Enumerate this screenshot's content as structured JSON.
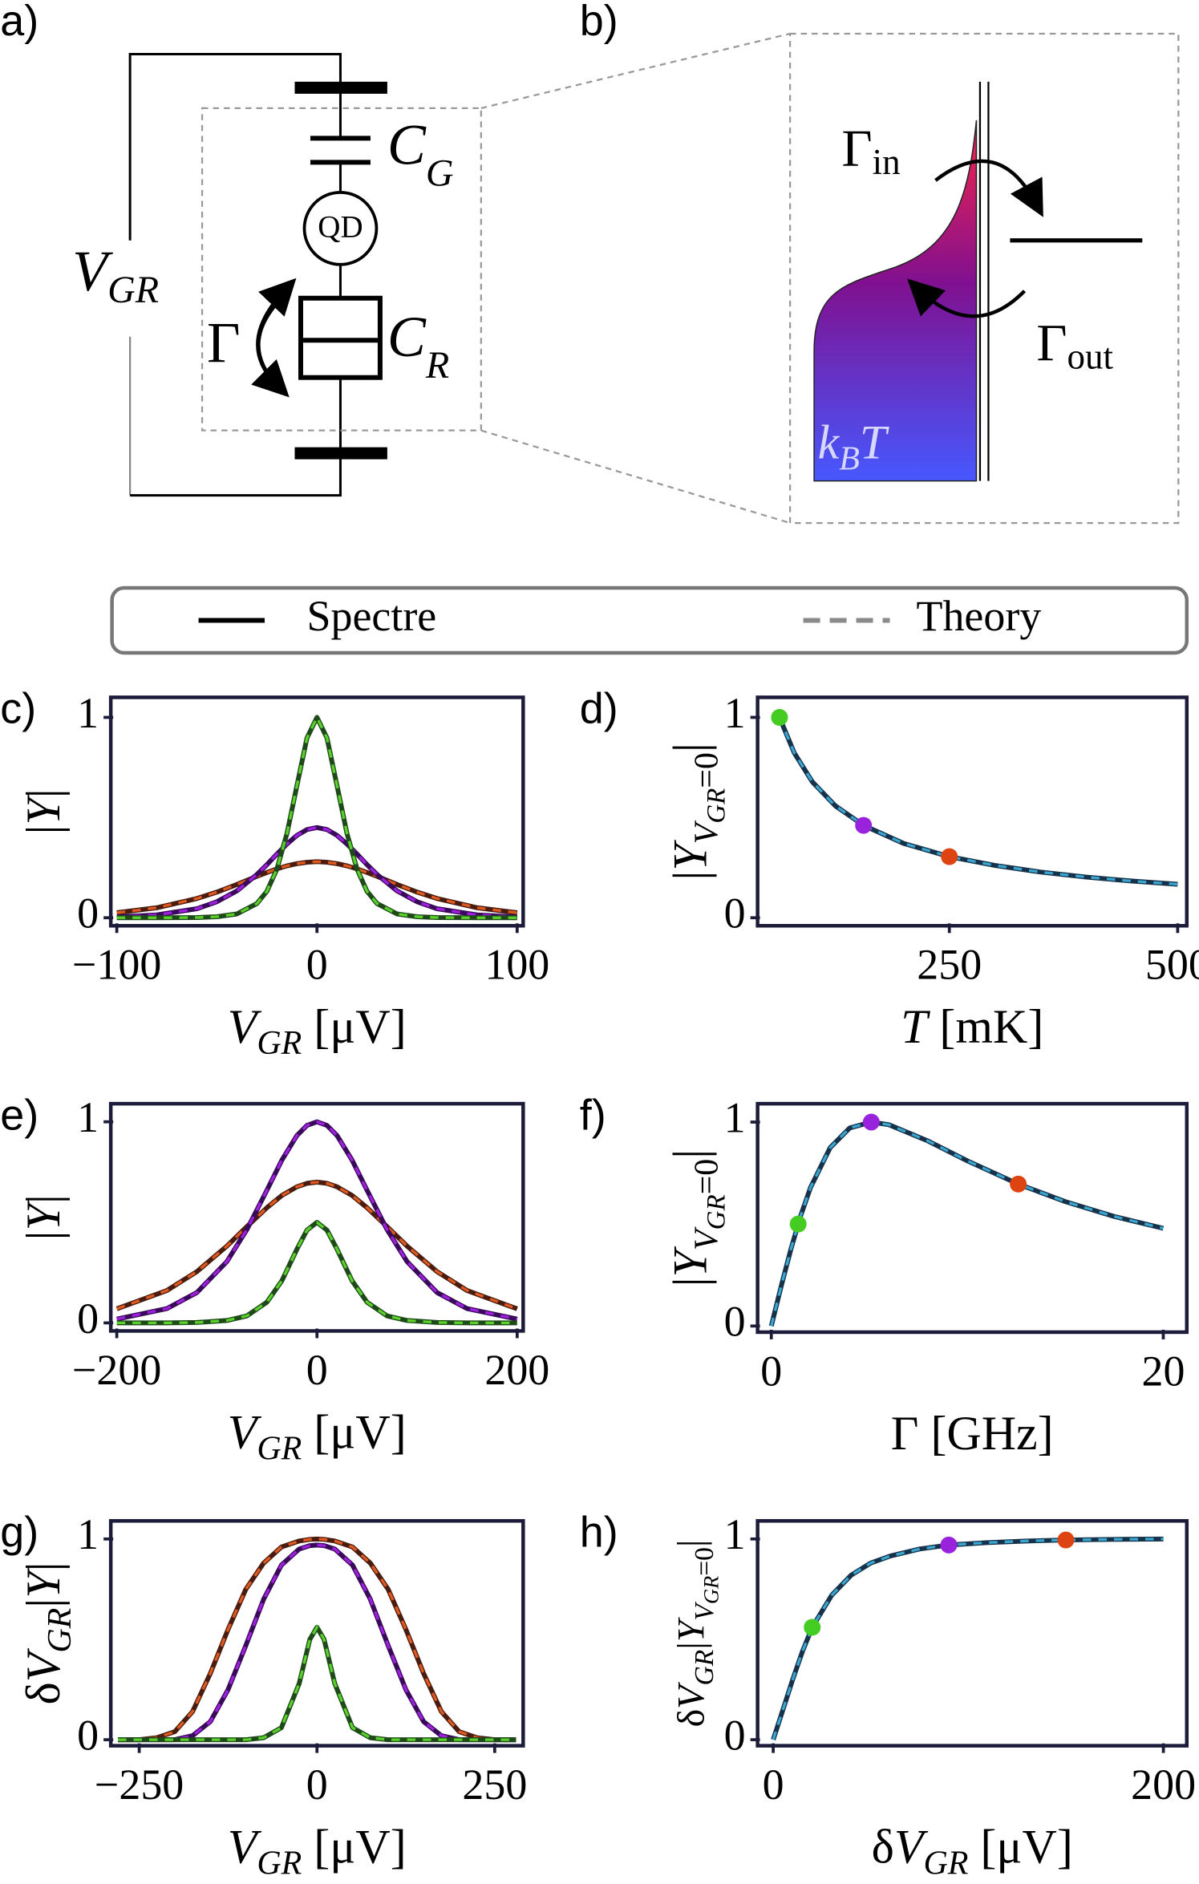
{
  "diagram": {
    "panel_a": "a)",
    "panel_b": "b)",
    "cg": {
      "base": "C",
      "sub": "G"
    },
    "qd": "QD",
    "cr": {
      "base": "C",
      "sub": "R"
    },
    "vgr": {
      "base": "V",
      "sub": "GR"
    },
    "gamma": "Γ",
    "gamma_in": {
      "base": "Γ",
      "sub": "in"
    },
    "gamma_out": {
      "base": "Γ",
      "sub": "out"
    },
    "kbt": {
      "base": "k",
      "sub": "B",
      "tail": "T"
    }
  },
  "legend": {
    "entries": [
      {
        "label": "Spectre",
        "color": "#000000",
        "dash": false
      },
      {
        "label": "Theory",
        "color": "#8a8a8a",
        "dash": true
      }
    ]
  },
  "chart_data": [
    {
      "type": "line",
      "panel": "c)",
      "xlabel": [
        {
          "text": "V",
          "style": "italic"
        },
        {
          "text": "GR",
          "style": "sub"
        },
        {
          "text": " [μV]"
        }
      ],
      "ylabel": [
        {
          "text": "|"
        },
        {
          "text": "Y",
          "style": "italic"
        },
        {
          "text": "|"
        }
      ],
      "xlim": [
        -103,
        103
      ],
      "ylim": [
        -0.04,
        1.1
      ],
      "xticks": [
        {
          "value": -100,
          "label": "−100"
        },
        0,
        100
      ],
      "yticks": [
        0,
        1
      ],
      "x": [
        -100,
        -80,
        -60,
        -50,
        -40,
        -30,
        -25,
        -20,
        -15,
        -10,
        -5,
        0,
        5,
        10,
        15,
        20,
        25,
        30,
        40,
        50,
        60,
        80,
        100
      ],
      "series": [
        {
          "color": "#4a1c10",
          "dash_color": "#e05a20",
          "values": [
            0.025,
            0.05,
            0.096,
            0.128,
            0.166,
            0.207,
            0.226,
            0.244,
            0.259,
            0.27,
            0.277,
            0.28,
            0.277,
            0.27,
            0.259,
            0.244,
            0.226,
            0.207,
            0.166,
            0.128,
            0.096,
            0.05,
            0.025
          ]
        },
        {
          "color": "#3a0a5a",
          "dash_color": "#a020e0",
          "values": [
            0.004,
            0.014,
            0.045,
            0.08,
            0.134,
            0.216,
            0.265,
            0.318,
            0.368,
            0.411,
            0.44,
            0.45,
            0.44,
            0.411,
            0.368,
            0.318,
            0.265,
            0.216,
            0.134,
            0.08,
            0.045,
            0.014,
            0.004
          ]
        },
        {
          "color": "#1e4a1a",
          "dash_color": "#5ad02a",
          "values": [
            0,
            0,
            0.001,
            0.005,
            0.019,
            0.071,
            0.132,
            0.243,
            0.42,
            0.66,
            0.897,
            1,
            0.897,
            0.66,
            0.42,
            0.243,
            0.132,
            0.071,
            0.019,
            0.005,
            0.001,
            0,
            0
          ]
        }
      ]
    },
    {
      "type": "line",
      "panel": "d)",
      "xlabel": [
        {
          "text": "T",
          "style": "italic"
        },
        {
          "text": " [mK]"
        }
      ],
      "ylabel": [
        {
          "text": "|"
        },
        {
          "text": "Y",
          "style": "italic"
        },
        {
          "text": "V",
          "style": "sub"
        },
        {
          "text": "GR",
          "style": "subsub"
        },
        {
          "text": "=0",
          "style": "subnormal"
        },
        {
          "text": "|"
        }
      ],
      "xlim": [
        40,
        510
      ],
      "ylim": [
        -0.04,
        1.1
      ],
      "xticks": [
        250,
        500
      ],
      "yticks": [
        0,
        1
      ],
      "x": [
        64,
        80,
        100,
        125,
        156,
        200,
        250,
        300,
        350,
        400,
        450,
        500
      ],
      "series": [
        {
          "color": "#16324a",
          "dash_color": "#3aa6cf",
          "values": [
            1,
            0.824,
            0.678,
            0.559,
            0.461,
            0.371,
            0.305,
            0.261,
            0.228,
            0.203,
            0.183,
            0.167
          ]
        }
      ],
      "points": {
        "x": [
          64,
          156,
          250
        ],
        "y": [
          1,
          0.461,
          0.305
        ],
        "colors": [
          "#44cc22",
          "#9922dd",
          "#dd4411"
        ]
      }
    },
    {
      "type": "line",
      "panel": "e)",
      "xlabel": [
        {
          "text": "V",
          "style": "italic"
        },
        {
          "text": "GR",
          "style": "sub"
        },
        {
          "text": " [μV]"
        }
      ],
      "ylabel": [
        {
          "text": "|"
        },
        {
          "text": "Y",
          "style": "italic"
        },
        {
          "text": "|"
        }
      ],
      "xlim": [
        -206,
        206
      ],
      "ylim": [
        -0.04,
        1.09
      ],
      "xticks": [
        {
          "value": -200,
          "label": "−200"
        },
        0,
        200
      ],
      "yticks": [
        0,
        1
      ],
      "x": [
        -200,
        -150,
        -120,
        -90,
        -70,
        -50,
        -35,
        -20,
        -10,
        0,
        10,
        20,
        35,
        50,
        70,
        90,
        120,
        150,
        200
      ],
      "series": [
        {
          "color": "#4a1c10",
          "dash_color": "#e05a20",
          "values": [
            0.07,
            0.161,
            0.255,
            0.382,
            0.479,
            0.573,
            0.634,
            0.677,
            0.694,
            0.7,
            0.694,
            0.677,
            0.634,
            0.573,
            0.479,
            0.382,
            0.255,
            0.161,
            0.07
          ]
        },
        {
          "color": "#3a0a5a",
          "dash_color": "#a020e0",
          "values": [
            0.019,
            0.071,
            0.151,
            0.305,
            0.464,
            0.66,
            0.81,
            0.932,
            0.982,
            1,
            0.982,
            0.932,
            0.81,
            0.66,
            0.464,
            0.305,
            0.151,
            0.071,
            0.019
          ]
        },
        {
          "color": "#1e4a1a",
          "dash_color": "#5ad02a",
          "values": [
            0,
            0,
            0.002,
            0.012,
            0.035,
            0.103,
            0.21,
            0.367,
            0.461,
            0.5,
            0.461,
            0.367,
            0.21,
            0.103,
            0.035,
            0.012,
            0.002,
            0,
            0
          ]
        }
      ]
    },
    {
      "type": "line",
      "panel": "f)",
      "xlabel": [
        {
          "text": "Γ [GHz]"
        }
      ],
      "ylabel": [
        {
          "text": "|"
        },
        {
          "text": "Y",
          "style": "italic"
        },
        {
          "text": "V",
          "style": "sub"
        },
        {
          "text": "GR",
          "style": "subsub"
        },
        {
          "text": "=0",
          "style": "subnormal"
        },
        {
          "text": "|"
        }
      ],
      "xlim": [
        -0.7,
        21.2
      ],
      "ylim": [
        -0.03,
        1.09
      ],
      "xticks": [
        0,
        20
      ],
      "yticks": [
        0,
        1
      ],
      "x": [
        0,
        0.5,
        1,
        1.5,
        2,
        3,
        4,
        5.1,
        6,
        8,
        10,
        12.6,
        15,
        17.5,
        20
      ],
      "series": [
        {
          "color": "#16324a",
          "dash_color": "#3aa6cf",
          "values": [
            0,
            0.194,
            0.377,
            0.541,
            0.679,
            0.874,
            0.971,
            1,
            0.987,
            0.907,
            0.81,
            0.696,
            0.61,
            0.537,
            0.479
          ]
        }
      ],
      "points": {
        "x": [
          1.37,
          5.1,
          12.6
        ],
        "y": [
          0.5,
          1,
          0.696
        ],
        "colors": [
          "#44cc22",
          "#9922dd",
          "#dd4411"
        ]
      }
    },
    {
      "type": "line",
      "panel": "g)",
      "xlabel": [
        {
          "text": "V",
          "style": "italic"
        },
        {
          "text": "GR",
          "style": "sub"
        },
        {
          "text": " [μV]"
        }
      ],
      "ylabel": [
        {
          "text": "δ"
        },
        {
          "text": "V",
          "style": "italic"
        },
        {
          "text": "GR",
          "style": "sub"
        },
        {
          "text": "|"
        },
        {
          "text": "Y",
          "style": "italic"
        },
        {
          "text": "|"
        }
      ],
      "xlim": [
        -290,
        290
      ],
      "ylim": [
        -0.03,
        1.09
      ],
      "xticks": [
        {
          "value": -250,
          "label": "−250"
        },
        0,
        250
      ],
      "yticks": [
        0,
        1
      ],
      "x": [
        -280,
        -250,
        -225,
        -200,
        -175,
        -150,
        -125,
        -100,
        -75,
        -50,
        -25,
        -10,
        0,
        10,
        25,
        50,
        75,
        100,
        125,
        150,
        175,
        200,
        225,
        250,
        280
      ],
      "series": [
        {
          "color": "#4a1c10",
          "dash_color": "#e05a20",
          "values": [
            0,
            0,
            0.01,
            0.04,
            0.14,
            0.33,
            0.55,
            0.75,
            0.88,
            0.96,
            0.99,
            0.998,
            1,
            0.998,
            0.99,
            0.96,
            0.88,
            0.75,
            0.55,
            0.33,
            0.14,
            0.04,
            0.01,
            0,
            0
          ]
        },
        {
          "color": "#3a0a5a",
          "dash_color": "#a020e0",
          "values": [
            0,
            0,
            0,
            0,
            0.02,
            0.09,
            0.25,
            0.47,
            0.7,
            0.87,
            0.95,
            0.967,
            0.97,
            0.967,
            0.95,
            0.87,
            0.7,
            0.47,
            0.25,
            0.09,
            0.02,
            0,
            0,
            0,
            0
          ]
        },
        {
          "color": "#1e4a1a",
          "dash_color": "#5ad02a",
          "values": [
            0,
            0,
            0,
            0,
            0,
            0,
            0,
            0,
            0.01,
            0.06,
            0.28,
            0.5,
            0.56,
            0.5,
            0.28,
            0.06,
            0.01,
            0,
            0,
            0,
            0,
            0,
            0,
            0,
            0
          ]
        }
      ]
    },
    {
      "type": "line",
      "panel": "h)",
      "xlabel": [
        {
          "text": "δ"
        },
        {
          "text": "V",
          "style": "italic"
        },
        {
          "text": "GR",
          "style": "sub"
        },
        {
          "text": " [μV]"
        }
      ],
      "ylabel": [
        {
          "text": "δ"
        },
        {
          "text": "V",
          "style": "italic"
        },
        {
          "text": "GR",
          "style": "sub"
        },
        {
          "text": "|"
        },
        {
          "text": "Y",
          "style": "italic"
        },
        {
          "text": "V",
          "style": "sub"
        },
        {
          "text": "GR",
          "style": "subsub"
        },
        {
          "text": "=0",
          "style": "subnormal"
        },
        {
          "text": "|"
        }
      ],
      "xlim": [
        -8,
        212
      ],
      "ylim": [
        -0.03,
        1.09
      ],
      "xticks": [
        0,
        200
      ],
      "yticks": [
        0,
        1
      ],
      "x": [
        0,
        5,
        10,
        15,
        20,
        30,
        40,
        50,
        60,
        75,
        90,
        110,
        130,
        150,
        175,
        200
      ],
      "series": [
        {
          "color": "#16324a",
          "dash_color": "#3aa6cf",
          "values": [
            0,
            0.15,
            0.3,
            0.44,
            0.56,
            0.72,
            0.82,
            0.88,
            0.915,
            0.95,
            0.97,
            0.982,
            0.99,
            0.995,
            0.998,
            1
          ]
        }
      ],
      "points": {
        "x": [
          20,
          90,
          150
        ],
        "y": [
          0.56,
          0.97,
          0.995
        ],
        "colors": [
          "#44cc22",
          "#9922dd",
          "#dd4411"
        ]
      }
    }
  ]
}
